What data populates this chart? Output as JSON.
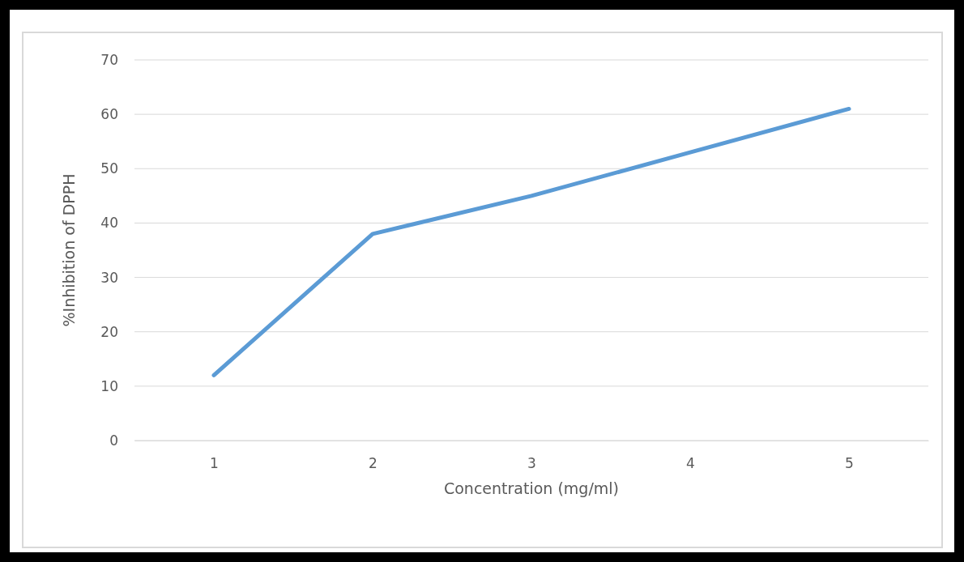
{
  "chart_data": {
    "type": "line",
    "xlabel": "Concentration (mg/ml)",
    "ylabel": "%Inhibition of DPPH",
    "categories": [
      "1",
      "2",
      "3",
      "4",
      "5"
    ],
    "series": [
      {
        "color": "#5b9bd5",
        "values": [
          12,
          38,
          45,
          53,
          61
        ]
      }
    ],
    "ylim": [
      0,
      70
    ],
    "yticks": [
      0,
      10,
      20,
      30,
      40,
      50,
      60,
      70
    ],
    "grid": "y",
    "line_style": "solid"
  }
}
